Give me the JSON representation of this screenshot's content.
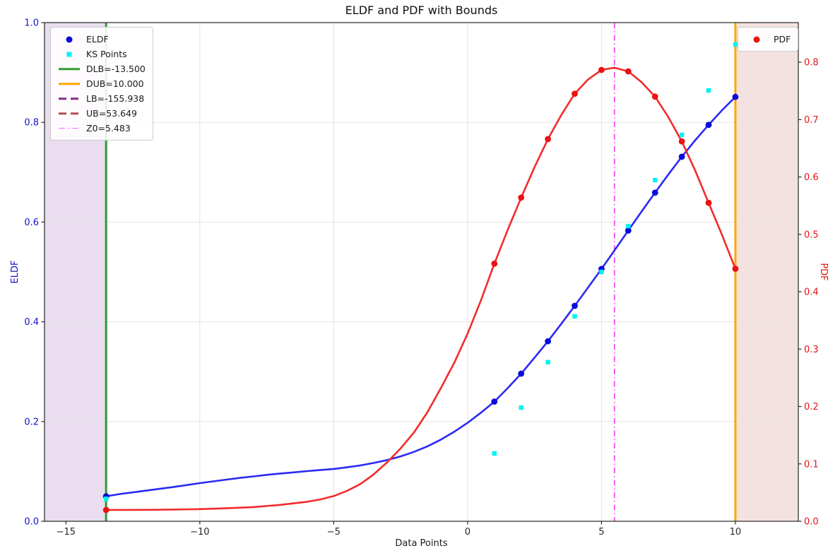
{
  "title": "ELDF and PDF with Bounds",
  "axes": {
    "x": {
      "label": "Data Points",
      "ticks": [
        -15,
        -10,
        -5,
        0,
        5,
        10
      ],
      "range": [
        -15.8,
        12.35
      ]
    },
    "y_left": {
      "label": "ELDF",
      "ticks": [
        0.0,
        0.2,
        0.4,
        0.6,
        0.8,
        1.0
      ],
      "range": [
        0,
        1.0
      ],
      "tick_color": "#1414cf"
    },
    "y_right": {
      "label": "PDF",
      "ticks": [
        0.0,
        0.1,
        0.2,
        0.3,
        0.4,
        0.5,
        0.6,
        0.7,
        0.8
      ],
      "range": [
        0,
        0.869
      ],
      "tick_color": "#e81414"
    }
  },
  "legend_left": {
    "items": [
      {
        "label": "ELDF",
        "marker": "circle",
        "color": "#0b0bd6"
      },
      {
        "label": "KS Points",
        "marker": "square",
        "color": "#00f2f2"
      },
      {
        "label": "DLB=-13.500",
        "marker": "line",
        "color": "#339933"
      },
      {
        "label": "DUB=10.000",
        "marker": "line",
        "color": "#ffa500"
      },
      {
        "label": "LB=-155.938",
        "marker": "dashed-line",
        "color": "#872a87"
      },
      {
        "label": "UB=53.649",
        "marker": "dashed-line",
        "color": "#b05050"
      },
      {
        "label": "Z0=5.483",
        "marker": "dashdot-line",
        "color": "#ff5cff"
      }
    ]
  },
  "legend_right": {
    "items": [
      {
        "label": "PDF",
        "marker": "circle",
        "color": "#ee1111"
      }
    ]
  },
  "chart_data": {
    "type": "line",
    "title": "ELDF and PDF with Bounds",
    "xlabel": "Data Points",
    "ylabel_left": "ELDF",
    "ylabel_right": "PDF",
    "x_range": [
      -15.8,
      12.35
    ],
    "y_left_range": [
      0,
      1.0
    ],
    "y_right_range": [
      0,
      0.869
    ],
    "grid": true,
    "grid_color": "#e3e3e3",
    "frame_color": "#262626",
    "bounds": {
      "DLB": -13.5,
      "DUB": 10.0,
      "LB": -155.938,
      "UB": 53.649,
      "Z0": 5.483
    },
    "vlines": [
      {
        "name": "DLB",
        "x": -13.5,
        "color": "#339933",
        "style": "solid",
        "width": 3
      },
      {
        "name": "DUB",
        "x": 10.0,
        "color": "#ffa500",
        "style": "solid",
        "width": 3
      },
      {
        "name": "Z0",
        "x": 5.483,
        "color": "#f23bf2",
        "style": "dashdot",
        "width": 1.6
      }
    ],
    "shaded_regions": [
      {
        "name": "below-DLB",
        "x0": -15.8,
        "x1": -13.5,
        "color": "#e9ddef"
      },
      {
        "name": "above-DUB",
        "x0": 10.0,
        "x1": 12.35,
        "color": "#f3e2e0"
      }
    ],
    "series": [
      {
        "name": "ELDF curve",
        "axis": "left",
        "type": "line",
        "color": "#2a2af2",
        "width": 2.6,
        "points": [
          [
            -13.5,
            0.05
          ],
          [
            -13,
            0.0545
          ],
          [
            -12.5,
            0.058
          ],
          [
            -12,
            0.0615
          ],
          [
            -11.5,
            0.065
          ],
          [
            -11,
            0.0685
          ],
          [
            -10.5,
            0.0725
          ],
          [
            -10,
            0.0765
          ],
          [
            -9.5,
            0.08
          ],
          [
            -9,
            0.0835
          ],
          [
            -8.5,
            0.087
          ],
          [
            -8,
            0.09
          ],
          [
            -7.5,
            0.093
          ],
          [
            -7,
            0.0957
          ],
          [
            -6.5,
            0.098
          ],
          [
            -6,
            0.1005
          ],
          [
            -5.5,
            0.1028
          ],
          [
            -5,
            0.105
          ],
          [
            -4.5,
            0.1082
          ],
          [
            -4,
            0.112
          ],
          [
            -3.5,
            0.117
          ],
          [
            -3,
            0.1228
          ],
          [
            -2.5,
            0.1302
          ],
          [
            -2,
            0.1392
          ],
          [
            -1.5,
            0.1503
          ],
          [
            -1,
            0.1638
          ],
          [
            -0.5,
            0.1795
          ],
          [
            0,
            0.1975
          ],
          [
            0.5,
            0.2178
          ],
          [
            1,
            0.24
          ],
          [
            1.5,
            0.2672
          ],
          [
            2,
            0.296
          ],
          [
            2.5,
            0.328
          ],
          [
            3,
            0.361
          ],
          [
            3.5,
            0.396
          ],
          [
            4,
            0.432
          ],
          [
            4.5,
            0.469
          ],
          [
            5,
            0.506
          ],
          [
            5.5,
            0.5445
          ],
          [
            6,
            0.583
          ],
          [
            6.5,
            0.6215
          ],
          [
            7,
            0.659
          ],
          [
            7.5,
            0.6957
          ],
          [
            8,
            0.731
          ],
          [
            8.5,
            0.7642
          ],
          [
            9,
            0.795
          ],
          [
            9.5,
            0.8242
          ],
          [
            10,
            0.851
          ]
        ]
      },
      {
        "name": "ELDF",
        "axis": "left",
        "type": "scatter",
        "marker": "circle",
        "size": 4.4,
        "color": "#0b0bd6",
        "points": [
          [
            -13.5,
            0.05
          ],
          [
            1,
            0.24
          ],
          [
            2,
            0.296
          ],
          [
            3,
            0.361
          ],
          [
            4,
            0.432
          ],
          [
            5,
            0.506
          ],
          [
            6,
            0.583
          ],
          [
            7,
            0.659
          ],
          [
            8,
            0.731
          ],
          [
            9,
            0.795
          ],
          [
            10,
            0.851
          ]
        ]
      },
      {
        "name": "KS Points",
        "axis": "left",
        "type": "scatter",
        "marker": "square",
        "size": 6.4,
        "color": "#00f2f2",
        "points": [
          [
            -13.5,
            0.045
          ],
          [
            1,
            0.136
          ],
          [
            2,
            0.228
          ],
          [
            3,
            0.319
          ],
          [
            4,
            0.411
          ],
          [
            5,
            0.5
          ],
          [
            6,
            0.592
          ],
          [
            7,
            0.684
          ],
          [
            8,
            0.775
          ],
          [
            9,
            0.864
          ],
          [
            10,
            0.956
          ]
        ]
      },
      {
        "name": "PDF curve",
        "axis": "right",
        "type": "line",
        "color": "#f22b2b",
        "width": 2.6,
        "points": [
          [
            -13.5,
            0.0197
          ],
          [
            -13,
            0.0198
          ],
          [
            -12,
            0.02
          ],
          [
            -11,
            0.0204
          ],
          [
            -10,
            0.0212
          ],
          [
            -9,
            0.0226
          ],
          [
            -8,
            0.0248
          ],
          [
            -7,
            0.0285
          ],
          [
            -6,
            0.034
          ],
          [
            -5.5,
            0.038
          ],
          [
            -5,
            0.044
          ],
          [
            -4.5,
            0.053
          ],
          [
            -4,
            0.065
          ],
          [
            -3.5,
            0.082
          ],
          [
            -3,
            0.103
          ],
          [
            -2.5,
            0.127
          ],
          [
            -2,
            0.155
          ],
          [
            -1.5,
            0.19
          ],
          [
            -1,
            0.232
          ],
          [
            -0.5,
            0.276
          ],
          [
            0,
            0.327
          ],
          [
            0.5,
            0.385
          ],
          [
            1,
            0.449
          ],
          [
            1.5,
            0.508
          ],
          [
            2,
            0.564
          ],
          [
            2.5,
            0.617
          ],
          [
            3,
            0.666
          ],
          [
            3.5,
            0.708
          ],
          [
            4,
            0.745
          ],
          [
            4.5,
            0.77
          ],
          [
            5,
            0.7865
          ],
          [
            5.483,
            0.7905
          ],
          [
            6,
            0.784
          ],
          [
            6.5,
            0.765
          ],
          [
            7,
            0.74
          ],
          [
            7.5,
            0.704
          ],
          [
            8,
            0.662
          ],
          [
            8.5,
            0.611
          ],
          [
            9,
            0.555
          ],
          [
            9.5,
            0.499
          ],
          [
            10,
            0.44
          ]
        ]
      },
      {
        "name": "PDF",
        "axis": "right",
        "type": "scatter",
        "marker": "circle",
        "size": 4.4,
        "color": "#ee1111",
        "points": [
          [
            -13.5,
            0.0197
          ],
          [
            1,
            0.449
          ],
          [
            2,
            0.564
          ],
          [
            3,
            0.666
          ],
          [
            4,
            0.745
          ],
          [
            5,
            0.7865
          ],
          [
            6,
            0.784
          ],
          [
            7,
            0.74
          ],
          [
            8,
            0.662
          ],
          [
            9,
            0.555
          ],
          [
            10,
            0.44
          ]
        ]
      }
    ]
  }
}
